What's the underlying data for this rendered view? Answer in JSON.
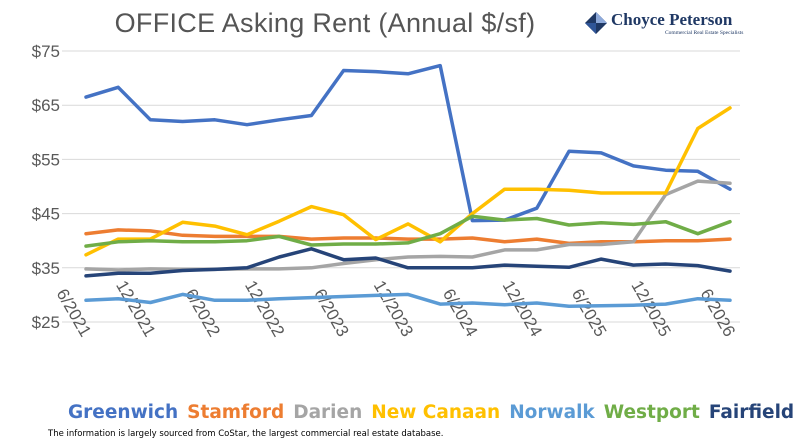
{
  "brand": {
    "name": "Choyce Peterson",
    "tagline": "Commercial Real Estate Specialists",
    "color": "#1f3864"
  },
  "footnote": "The information is largely sourced from CoStar, the largest commercial real estate database.",
  "chart_data": {
    "type": "line",
    "title": "OFFICE Asking Rent (Annual $/sf)",
    "xlabel": "",
    "ylabel": "",
    "ylim": [
      25,
      75
    ],
    "yticks": [
      25,
      35,
      45,
      55,
      65,
      75
    ],
    "ytick_labels": [
      "$25",
      "$35",
      "$45",
      "$55",
      "$65",
      "$75"
    ],
    "x": [
      "Q2 2021",
      "Q3 2021",
      "Q4 2021",
      "Q1 2022",
      "Q2 2022",
      "Q3 2022",
      "Q4 2022",
      "Q1 2023",
      "Q2 2023",
      "Q3 2023",
      "Q4 2023",
      "Q1 2024",
      "Q2 2024",
      "Q3 2024",
      "Q4 2024",
      "Q1 2025",
      "Q2 2025",
      "Q3 2025",
      "Q4 2025",
      "Q1 2026",
      "Q2 2026"
    ],
    "xtick_labels": [
      "6/2021",
      "12/2021",
      "6/2022",
      "12/2022",
      "6/2023",
      "12/2023",
      "6/2024",
      "12/2024",
      "6/2025",
      "12/2025",
      "6/2026"
    ],
    "xtick_positions": [
      0,
      2,
      4,
      6,
      8,
      10,
      12,
      14,
      16,
      18,
      20
    ],
    "grid": "horizontal",
    "legend_position": "bottom",
    "series": [
      {
        "name": "Greenwich",
        "color": "#4472c4",
        "values": [
          66.5,
          68.3,
          62.3,
          62.0,
          62.3,
          61.4,
          62.3,
          63.1,
          71.4,
          71.2,
          70.8,
          72.3,
          43.7,
          43.8,
          46.0,
          56.5,
          56.2,
          53.8,
          53.0,
          52.8,
          49.5
        ]
      },
      {
        "name": "Stamford",
        "color": "#ed7d31",
        "values": [
          41.3,
          42.0,
          41.8,
          41.0,
          40.8,
          40.8,
          40.8,
          40.3,
          40.5,
          40.5,
          40.3,
          40.3,
          40.5,
          39.8,
          40.3,
          39.5,
          39.8,
          39.8,
          40.0,
          40.0,
          40.3
        ]
      },
      {
        "name": "Darien",
        "color": "#a5a5a5",
        "values": [
          34.8,
          34.6,
          34.8,
          34.7,
          34.7,
          34.8,
          34.8,
          35.0,
          35.8,
          36.5,
          37.0,
          37.1,
          37.0,
          38.3,
          38.3,
          39.3,
          39.3,
          39.8,
          48.5,
          51.0,
          50.6
        ]
      },
      {
        "name": "New Canaan",
        "color": "#ffc000",
        "values": [
          37.4,
          40.3,
          40.3,
          43.4,
          42.7,
          41.1,
          43.6,
          46.3,
          44.8,
          40.2,
          43.1,
          39.8,
          45.0,
          49.5,
          49.5,
          49.3,
          48.8,
          48.8,
          48.8,
          60.7,
          64.5
        ]
      },
      {
        "name": "Norwalk",
        "color": "#5b9bd5",
        "values": [
          29.0,
          29.3,
          28.6,
          30.1,
          29.0,
          29.0,
          29.3,
          29.5,
          29.7,
          29.9,
          30.1,
          28.3,
          28.5,
          28.2,
          28.5,
          27.9,
          28.0,
          28.1,
          28.3,
          29.3,
          29.0
        ]
      },
      {
        "name": "Westport",
        "color": "#70ad47",
        "values": [
          39.0,
          39.8,
          40.0,
          39.8,
          39.8,
          40.0,
          40.8,
          39.2,
          39.4,
          39.4,
          39.6,
          41.3,
          44.5,
          43.8,
          44.1,
          42.9,
          43.3,
          43.0,
          43.5,
          41.3,
          43.5
        ]
      },
      {
        "name": "Fairfield",
        "color": "#264478",
        "values": [
          33.5,
          34.0,
          34.0,
          34.5,
          34.7,
          35.0,
          37.0,
          38.5,
          36.5,
          36.8,
          35.0,
          35.0,
          35.0,
          35.5,
          35.3,
          35.1,
          36.6,
          35.5,
          35.7,
          35.4,
          34.4
        ]
      }
    ]
  }
}
